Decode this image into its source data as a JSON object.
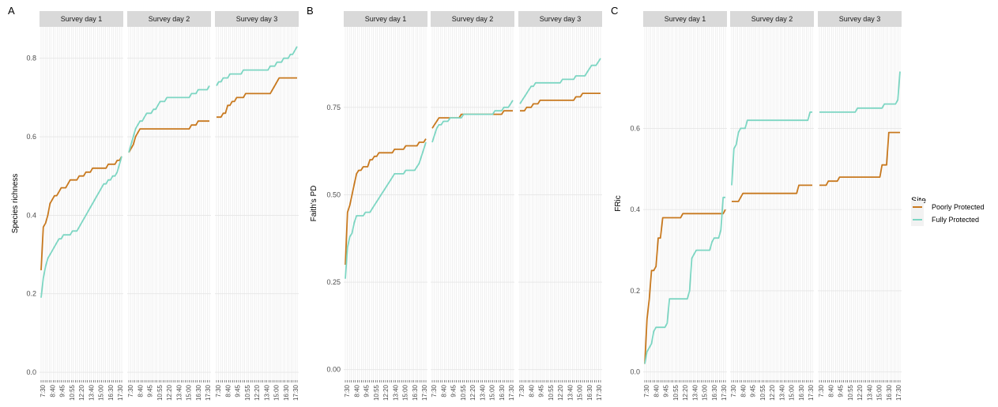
{
  "chart_data": [
    {
      "type": "line",
      "panel_letter": "A",
      "ylabel": "Species richness",
      "yticks": [
        "0.0",
        "0.2",
        "0.4",
        "0.6",
        "0.8"
      ],
      "ylim": [
        -0.02,
        0.88
      ],
      "grid": true,
      "facets": [
        {
          "label": "Survey day 1",
          "series": [
            {
              "name": "Poorly Protected",
              "values": [
                0.26,
                0.37,
                0.38,
                0.4,
                0.43,
                0.44,
                0.45,
                0.45,
                0.46,
                0.47,
                0.47,
                0.47,
                0.48,
                0.49,
                0.49,
                0.49,
                0.49,
                0.5,
                0.5,
                0.5,
                0.51,
                0.51,
                0.51,
                0.52,
                0.52,
                0.52,
                0.52,
                0.52,
                0.52,
                0.52,
                0.53,
                0.53,
                0.53,
                0.53,
                0.54,
                0.54,
                0.55
              ]
            },
            {
              "name": "Fully Protected",
              "values": [
                0.19,
                0.24,
                0.27,
                0.29,
                0.3,
                0.31,
                0.32,
                0.33,
                0.34,
                0.34,
                0.35,
                0.35,
                0.35,
                0.35,
                0.36,
                0.36,
                0.36,
                0.37,
                0.38,
                0.39,
                0.4,
                0.41,
                0.42,
                0.43,
                0.44,
                0.45,
                0.46,
                0.47,
                0.48,
                0.48,
                0.49,
                0.49,
                0.5,
                0.5,
                0.51,
                0.53,
                0.55
              ]
            }
          ]
        },
        {
          "label": "Survey day 2",
          "series": [
            {
              "name": "Poorly Protected",
              "values": [
                0.56,
                0.57,
                0.58,
                0.6,
                0.61,
                0.62,
                0.62,
                0.62,
                0.62,
                0.62,
                0.62,
                0.62,
                0.62,
                0.62,
                0.62,
                0.62,
                0.62,
                0.62,
                0.62,
                0.62,
                0.62,
                0.62,
                0.62,
                0.62,
                0.62,
                0.62,
                0.62,
                0.62,
                0.63,
                0.63,
                0.63,
                0.64,
                0.64,
                0.64,
                0.64,
                0.64,
                0.64
              ]
            },
            {
              "name": "Fully Protected",
              "values": [
                0.56,
                0.58,
                0.6,
                0.62,
                0.63,
                0.64,
                0.64,
                0.65,
                0.66,
                0.66,
                0.66,
                0.67,
                0.67,
                0.68,
                0.69,
                0.69,
                0.69,
                0.7,
                0.7,
                0.7,
                0.7,
                0.7,
                0.7,
                0.7,
                0.7,
                0.7,
                0.7,
                0.7,
                0.71,
                0.71,
                0.71,
                0.72,
                0.72,
                0.72,
                0.72,
                0.72,
                0.73
              ]
            }
          ]
        },
        {
          "label": "Survey day 3",
          "series": [
            {
              "name": "Poorly Protected",
              "values": [
                0.65,
                0.65,
                0.65,
                0.66,
                0.66,
                0.68,
                0.68,
                0.69,
                0.69,
                0.7,
                0.7,
                0.7,
                0.7,
                0.71,
                0.71,
                0.71,
                0.71,
                0.71,
                0.71,
                0.71,
                0.71,
                0.71,
                0.71,
                0.71,
                0.71,
                0.72,
                0.73,
                0.74,
                0.75,
                0.75,
                0.75,
                0.75,
                0.75,
                0.75,
                0.75,
                0.75,
                0.75
              ]
            },
            {
              "name": "Fully Protected",
              "values": [
                0.73,
                0.74,
                0.74,
                0.75,
                0.75,
                0.75,
                0.76,
                0.76,
                0.76,
                0.76,
                0.76,
                0.76,
                0.77,
                0.77,
                0.77,
                0.77,
                0.77,
                0.77,
                0.77,
                0.77,
                0.77,
                0.77,
                0.77,
                0.77,
                0.78,
                0.78,
                0.78,
                0.79,
                0.79,
                0.79,
                0.8,
                0.8,
                0.8,
                0.81,
                0.81,
                0.82,
                0.83
              ]
            }
          ]
        }
      ]
    },
    {
      "type": "line",
      "panel_letter": "B",
      "ylabel": "Faith's PD",
      "yticks": [
        "0.00",
        "0.25",
        "0.50",
        "0.75"
      ],
      "ylim": [
        -0.03,
        0.98
      ],
      "grid": true,
      "facets": [
        {
          "label": "Survey day 1",
          "series": [
            {
              "name": "Poorly Protected",
              "values": [
                0.3,
                0.45,
                0.47,
                0.5,
                0.53,
                0.56,
                0.57,
                0.57,
                0.58,
                0.58,
                0.58,
                0.6,
                0.6,
                0.61,
                0.61,
                0.62,
                0.62,
                0.62,
                0.62,
                0.62,
                0.62,
                0.62,
                0.63,
                0.63,
                0.63,
                0.63,
                0.63,
                0.64,
                0.64,
                0.64,
                0.64,
                0.64,
                0.64,
                0.65,
                0.65,
                0.65,
                0.66
              ]
            },
            {
              "name": "Fully Protected",
              "values": [
                0.26,
                0.35,
                0.38,
                0.39,
                0.42,
                0.44,
                0.44,
                0.44,
                0.44,
                0.45,
                0.45,
                0.45,
                0.46,
                0.47,
                0.48,
                0.49,
                0.5,
                0.51,
                0.52,
                0.53,
                0.54,
                0.55,
                0.56,
                0.56,
                0.56,
                0.56,
                0.56,
                0.57,
                0.57,
                0.57,
                0.57,
                0.57,
                0.58,
                0.59,
                0.61,
                0.63,
                0.65
              ]
            }
          ]
        },
        {
          "label": "Survey day 2",
          "series": [
            {
              "name": "Poorly Protected",
              "values": [
                0.69,
                0.7,
                0.71,
                0.72,
                0.72,
                0.72,
                0.72,
                0.72,
                0.72,
                0.72,
                0.72,
                0.72,
                0.72,
                0.73,
                0.73,
                0.73,
                0.73,
                0.73,
                0.73,
                0.73,
                0.73,
                0.73,
                0.73,
                0.73,
                0.73,
                0.73,
                0.73,
                0.73,
                0.73,
                0.73,
                0.73,
                0.73,
                0.74,
                0.74,
                0.74,
                0.74,
                0.74
              ]
            },
            {
              "name": "Fully Protected",
              "values": [
                0.65,
                0.67,
                0.69,
                0.7,
                0.7,
                0.71,
                0.71,
                0.71,
                0.72,
                0.72,
                0.72,
                0.72,
                0.72,
                0.72,
                0.73,
                0.73,
                0.73,
                0.73,
                0.73,
                0.73,
                0.73,
                0.73,
                0.73,
                0.73,
                0.73,
                0.73,
                0.73,
                0.73,
                0.74,
                0.74,
                0.74,
                0.74,
                0.75,
                0.75,
                0.75,
                0.76,
                0.77
              ]
            }
          ]
        },
        {
          "label": "Survey day 3",
          "series": [
            {
              "name": "Poorly Protected",
              "values": [
                0.74,
                0.74,
                0.74,
                0.75,
                0.75,
                0.75,
                0.76,
                0.76,
                0.76,
                0.77,
                0.77,
                0.77,
                0.77,
                0.77,
                0.77,
                0.77,
                0.77,
                0.77,
                0.77,
                0.77,
                0.77,
                0.77,
                0.77,
                0.77,
                0.77,
                0.78,
                0.78,
                0.78,
                0.79,
                0.79,
                0.79,
                0.79,
                0.79,
                0.79,
                0.79,
                0.79,
                0.79
              ]
            },
            {
              "name": "Fully Protected",
              "values": [
                0.76,
                0.77,
                0.78,
                0.79,
                0.8,
                0.81,
                0.81,
                0.82,
                0.82,
                0.82,
                0.82,
                0.82,
                0.82,
                0.82,
                0.82,
                0.82,
                0.82,
                0.82,
                0.82,
                0.83,
                0.83,
                0.83,
                0.83,
                0.83,
                0.83,
                0.84,
                0.84,
                0.84,
                0.84,
                0.84,
                0.85,
                0.86,
                0.87,
                0.87,
                0.87,
                0.88,
                0.89
              ]
            }
          ]
        }
      ]
    },
    {
      "type": "line",
      "panel_letter": "C",
      "ylabel": "FRic",
      "yticks": [
        "0.0",
        "0.2",
        "0.4",
        "0.6"
      ],
      "ylim": [
        -0.02,
        0.85
      ],
      "grid": true,
      "facets": [
        {
          "label": "Survey day 1",
          "series": [
            {
              "name": "Poorly Protected",
              "values": [
                0.02,
                0.13,
                0.18,
                0.25,
                0.25,
                0.26,
                0.33,
                0.33,
                0.38,
                0.38,
                0.38,
                0.38,
                0.38,
                0.38,
                0.38,
                0.38,
                0.38,
                0.39,
                0.39,
                0.39,
                0.39,
                0.39,
                0.39,
                0.39,
                0.39,
                0.39,
                0.39,
                0.39,
                0.39,
                0.39,
                0.39,
                0.39,
                0.39,
                0.39,
                0.39,
                0.39,
                0.4
              ]
            },
            {
              "name": "Fully Protected",
              "values": [
                0.02,
                0.05,
                0.06,
                0.07,
                0.1,
                0.11,
                0.11,
                0.11,
                0.11,
                0.11,
                0.12,
                0.18,
                0.18,
                0.18,
                0.18,
                0.18,
                0.18,
                0.18,
                0.18,
                0.18,
                0.2,
                0.28,
                0.29,
                0.3,
                0.3,
                0.3,
                0.3,
                0.3,
                0.3,
                0.3,
                0.32,
                0.33,
                0.33,
                0.33,
                0.35,
                0.43,
                0.43
              ]
            }
          ]
        },
        {
          "label": "Survey day 2",
          "series": [
            {
              "name": "Poorly Protected",
              "values": [
                0.42,
                0.42,
                0.42,
                0.42,
                0.43,
                0.44,
                0.44,
                0.44,
                0.44,
                0.44,
                0.44,
                0.44,
                0.44,
                0.44,
                0.44,
                0.44,
                0.44,
                0.44,
                0.44,
                0.44,
                0.44,
                0.44,
                0.44,
                0.44,
                0.44,
                0.44,
                0.44,
                0.44,
                0.44,
                0.44,
                0.46,
                0.46,
                0.46,
                0.46,
                0.46,
                0.46,
                0.46
              ]
            },
            {
              "name": "Fully Protected",
              "values": [
                0.46,
                0.55,
                0.56,
                0.59,
                0.6,
                0.6,
                0.6,
                0.62,
                0.62,
                0.62,
                0.62,
                0.62,
                0.62,
                0.62,
                0.62,
                0.62,
                0.62,
                0.62,
                0.62,
                0.62,
                0.62,
                0.62,
                0.62,
                0.62,
                0.62,
                0.62,
                0.62,
                0.62,
                0.62,
                0.62,
                0.62,
                0.62,
                0.62,
                0.62,
                0.62,
                0.64,
                0.64
              ]
            }
          ]
        },
        {
          "label": "Survey day 3",
          "series": [
            {
              "name": "Poorly Protected",
              "values": [
                0.46,
                0.46,
                0.46,
                0.46,
                0.47,
                0.47,
                0.47,
                0.47,
                0.47,
                0.48,
                0.48,
                0.48,
                0.48,
                0.48,
                0.48,
                0.48,
                0.48,
                0.48,
                0.48,
                0.48,
                0.48,
                0.48,
                0.48,
                0.48,
                0.48,
                0.48,
                0.48,
                0.48,
                0.51,
                0.51,
                0.51,
                0.59,
                0.59,
                0.59,
                0.59,
                0.59,
                0.59
              ]
            },
            {
              "name": "Fully Protected",
              "values": [
                0.64,
                0.64,
                0.64,
                0.64,
                0.64,
                0.64,
                0.64,
                0.64,
                0.64,
                0.64,
                0.64,
                0.64,
                0.64,
                0.64,
                0.64,
                0.64,
                0.64,
                0.65,
                0.65,
                0.65,
                0.65,
                0.65,
                0.65,
                0.65,
                0.65,
                0.65,
                0.65,
                0.65,
                0.65,
                0.66,
                0.66,
                0.66,
                0.66,
                0.66,
                0.66,
                0.67,
                0.74
              ]
            }
          ]
        }
      ]
    }
  ],
  "x_ticks": [
    "7:30",
    "8:40",
    "9:45",
    "10:55",
    "12:20",
    "13:40",
    "15:00",
    "16:30",
    "17:30"
  ],
  "legend": {
    "title": "Site",
    "entries": [
      "Poorly Protected",
      "Fully Protected"
    ],
    "placement": "right"
  },
  "colors": {
    "poorly_protected": "#c8791f",
    "fully_protected": "#7dd6c3",
    "panel_bg": "#ffffff",
    "grid": "#e6e6e6",
    "strip_bg": "#d9d9d9"
  }
}
